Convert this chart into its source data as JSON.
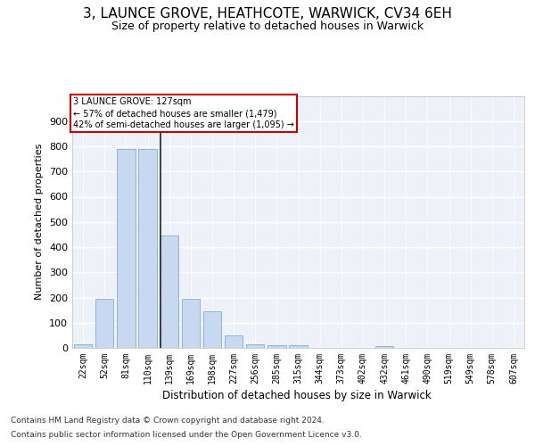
{
  "title1": "3, LAUNCE GROVE, HEATHCOTE, WARWICK, CV34 6EH",
  "title2": "Size of property relative to detached houses in Warwick",
  "xlabel": "Distribution of detached houses by size in Warwick",
  "ylabel": "Number of detached properties",
  "categories": [
    "22sqm",
    "52sqm",
    "81sqm",
    "110sqm",
    "139sqm",
    "169sqm",
    "198sqm",
    "227sqm",
    "256sqm",
    "285sqm",
    "315sqm",
    "344sqm",
    "373sqm",
    "402sqm",
    "432sqm",
    "461sqm",
    "490sqm",
    "519sqm",
    "549sqm",
    "578sqm",
    "607sqm"
  ],
  "values": [
    15,
    195,
    790,
    790,
    445,
    195,
    145,
    50,
    15,
    12,
    10,
    0,
    0,
    0,
    8,
    0,
    0,
    0,
    0,
    0,
    0
  ],
  "bar_color": "#c8d8f0",
  "bar_edge_color": "#7ab0d4",
  "bg_color": "#eef2f8",
  "grid_color": "#ffffff",
  "annotation_text": "3 LAUNCE GROVE: 127sqm\n← 57% of detached houses are smaller (1,479)\n42% of semi-detached houses are larger (1,095) →",
  "annotation_box_color": "#cc0000",
  "footer1": "Contains HM Land Registry data © Crown copyright and database right 2024.",
  "footer2": "Contains public sector information licensed under the Open Government Licence v3.0.",
  "ylim": [
    0,
    1000
  ],
  "yticks": [
    0,
    100,
    200,
    300,
    400,
    500,
    600,
    700,
    800,
    900,
    1000
  ],
  "property_value": 127,
  "title1_fontsize": 11,
  "title2_fontsize": 9
}
